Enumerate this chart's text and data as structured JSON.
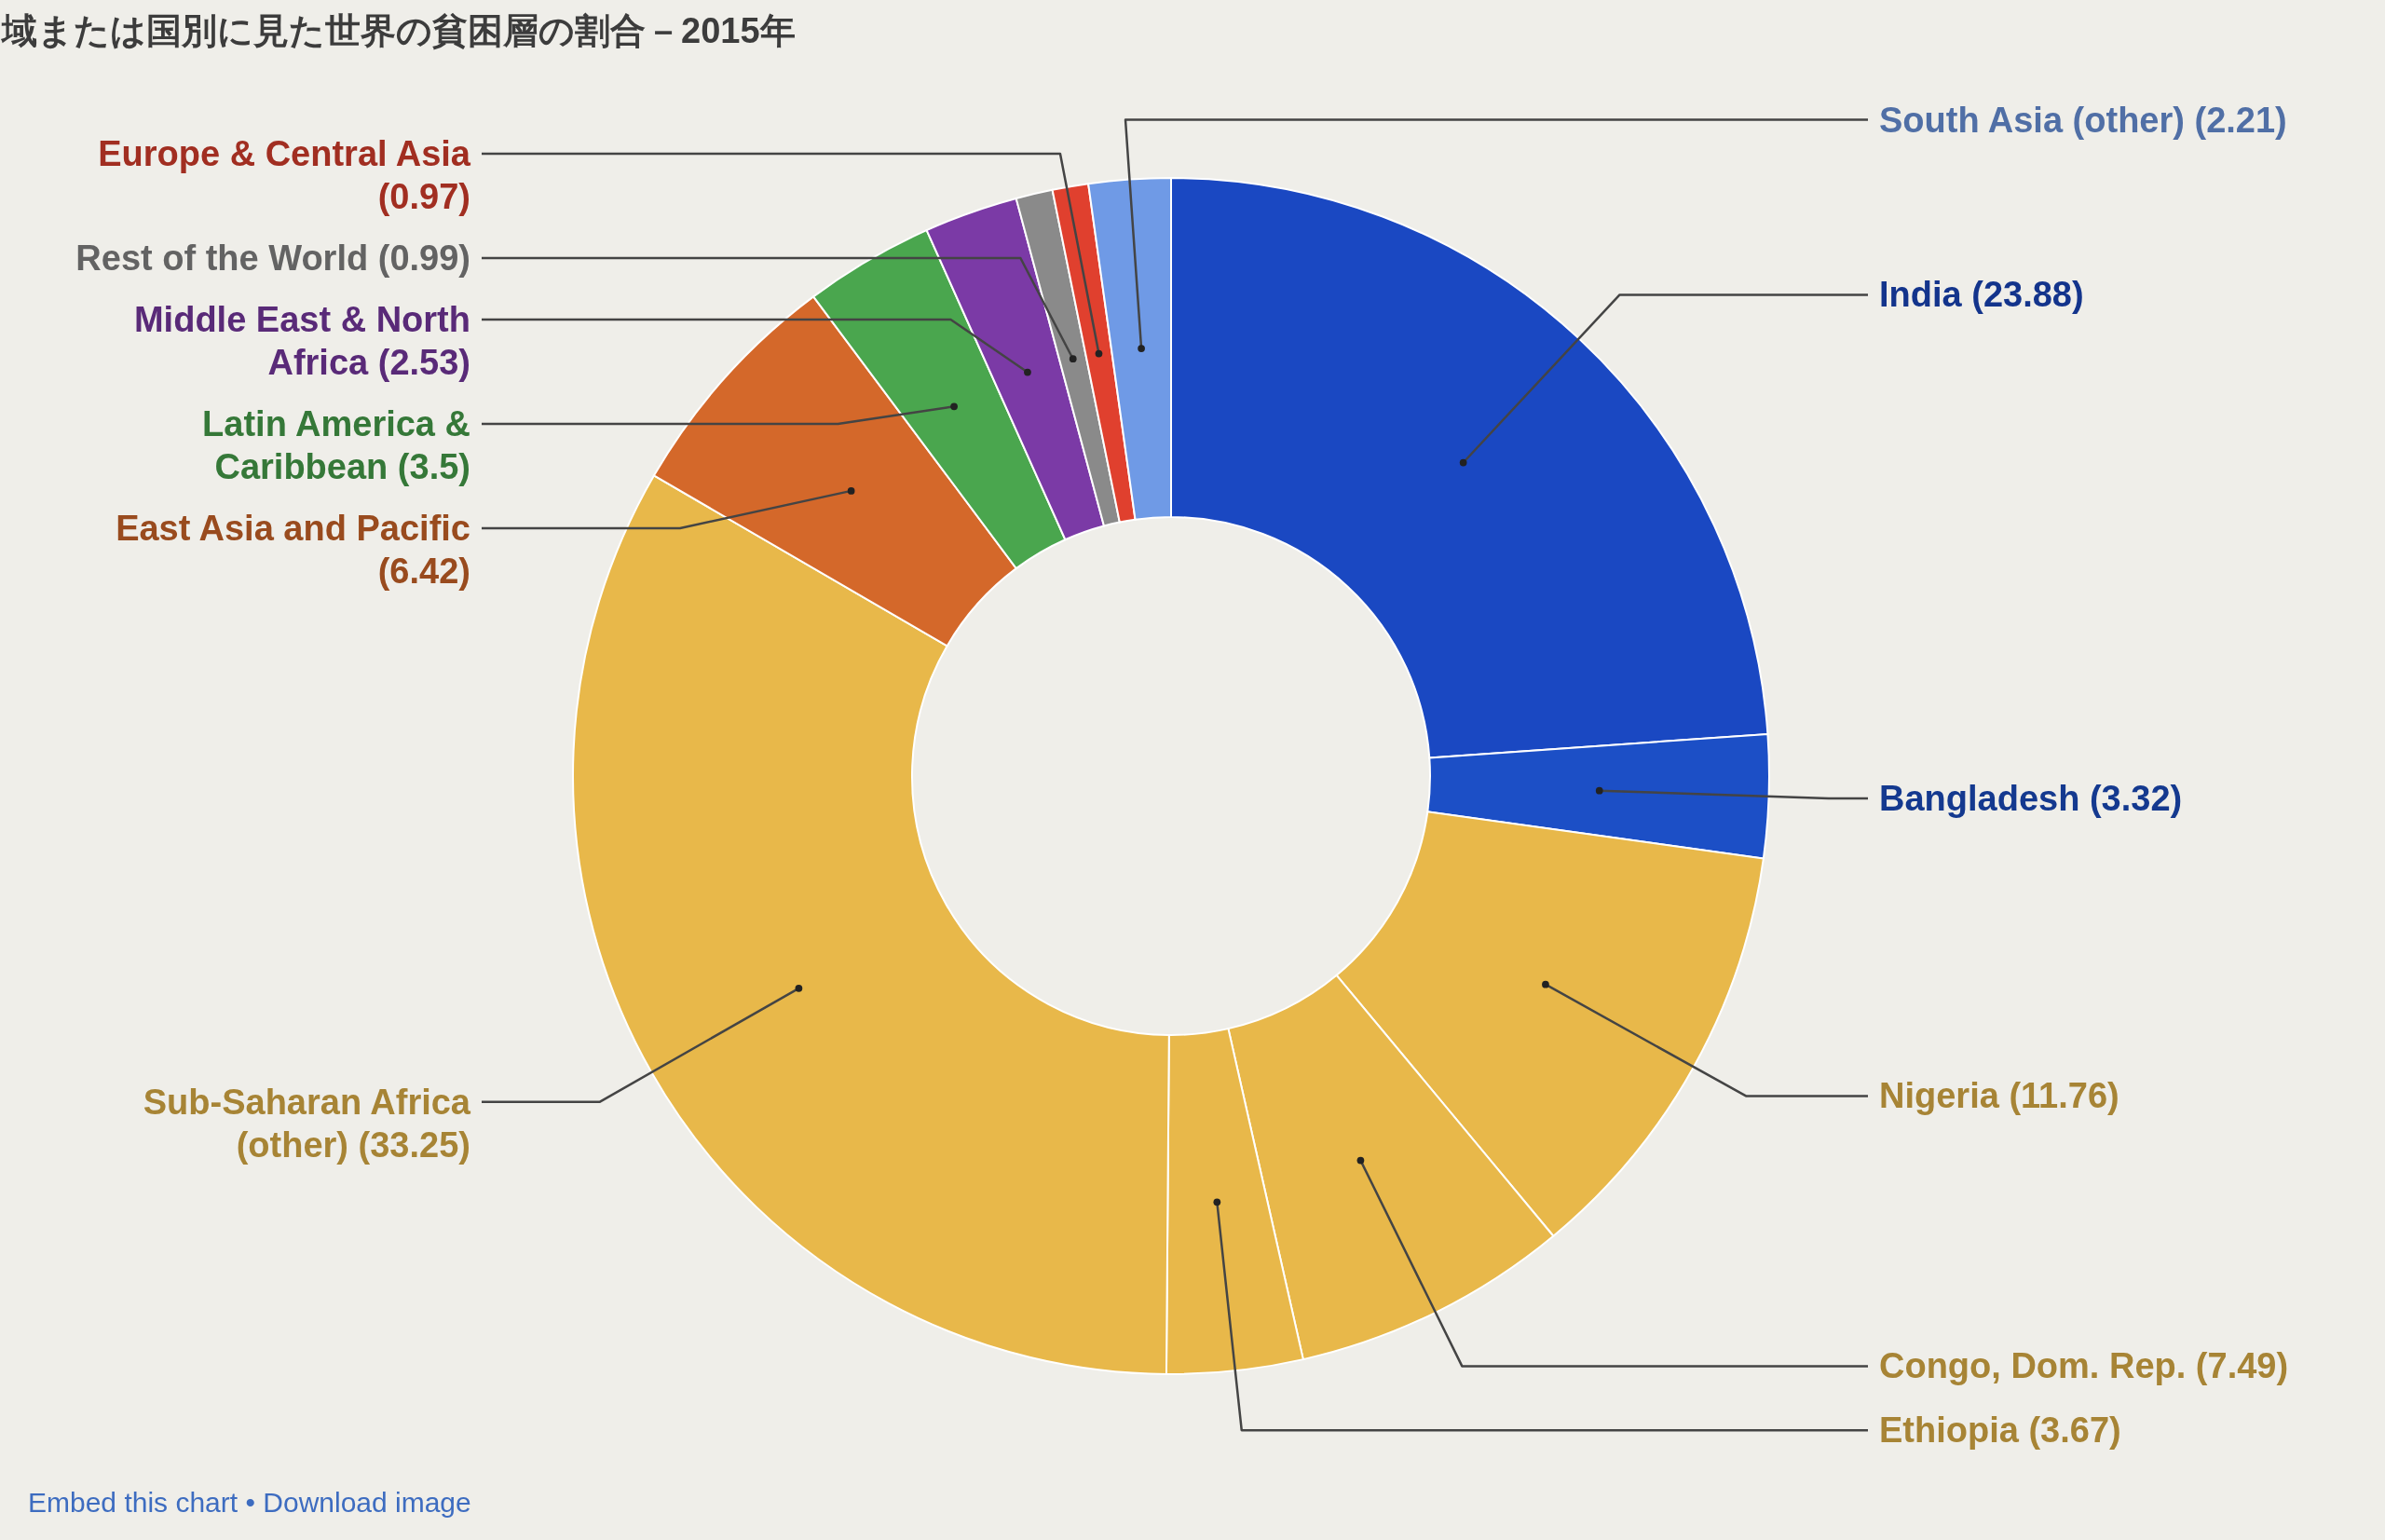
{
  "chart_data": {
    "type": "donut",
    "title": "域または国別に見た世界の貧困層の割合－2015年",
    "categories": [
      "India",
      "Bangladesh",
      "Nigeria",
      "Congo, Dom. Rep.",
      "Ethiopia",
      "Sub-Saharan Africa (other)",
      "East Asia and Pacific",
      "Latin America & Caribbean",
      "Middle East & North Africa",
      "Rest of the World",
      "Europe & Central Asia",
      "South Asia (other)"
    ],
    "values": [
      23.88,
      3.32,
      11.76,
      7.49,
      3.67,
      33.25,
      6.42,
      3.5,
      2.53,
      0.99,
      0.97,
      2.21
    ],
    "value_labels": [
      "(23.88)",
      "(3.32)",
      "(11.76)",
      "(7.49)",
      "(3.67)",
      "(33.25)",
      "(6.42)",
      "(3.5)",
      "(2.53)",
      "(0.99)",
      "(0.97)",
      "(2.21)"
    ],
    "colors": [
      "#1a48c2",
      "#1c4fc6",
      "#e8b84a",
      "#e8b84a",
      "#e8b84a",
      "#e8b84a",
      "#d4682a",
      "#4aa64e",
      "#7b3aa6",
      "#8a8a8a",
      "#e0402e",
      "#6f9ae6"
    ],
    "legend": false,
    "annotations": [
      "Embed this chart • Download image"
    ]
  }
}
